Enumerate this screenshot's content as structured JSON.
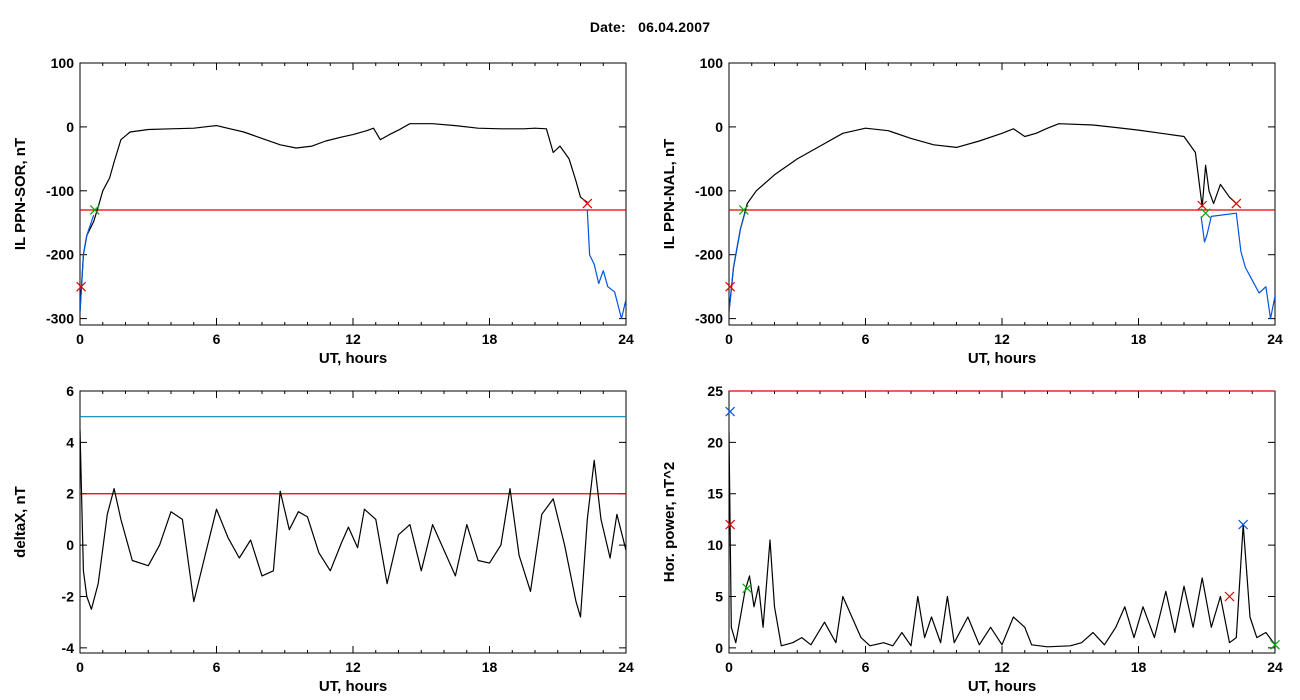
{
  "header": {
    "date_label": "Date:",
    "date_value": "06.04.2007"
  },
  "chart_data": [
    {
      "type": "line",
      "id": "il-ppn-sor",
      "xlabel": "UT, hours",
      "ylabel": "IL PPN-SOR, nT",
      "xlim": [
        0,
        24
      ],
      "ylim": [
        -310,
        100
      ],
      "xticks": [
        0,
        6,
        12,
        18,
        24
      ],
      "yticks": [
        -300,
        -200,
        -100,
        0,
        100
      ],
      "threshold_lines": [
        {
          "y": -130,
          "color": "#e00000"
        }
      ],
      "series": [
        {
          "color": "#000000",
          "points": [
            [
              0,
              -290
            ],
            [
              0.15,
              -200
            ],
            [
              0.3,
              -170
            ],
            [
              0.6,
              -148
            ],
            [
              0.8,
              -125
            ],
            [
              1.0,
              -100
            ],
            [
              1.3,
              -80
            ],
            [
              1.5,
              -55
            ],
            [
              1.8,
              -20
            ],
            [
              2.2,
              -8
            ],
            [
              3,
              -4
            ],
            [
              4,
              -3
            ],
            [
              5,
              -2
            ],
            [
              5.7,
              1
            ],
            [
              6,
              2
            ],
            [
              6.6,
              -3
            ],
            [
              7.2,
              -8
            ],
            [
              8,
              -18
            ],
            [
              8.8,
              -28
            ],
            [
              9.5,
              -33
            ],
            [
              10.2,
              -30
            ],
            [
              10.8,
              -22
            ],
            [
              11.5,
              -16
            ],
            [
              12,
              -12
            ],
            [
              12.6,
              -6
            ],
            [
              12.9,
              -2
            ],
            [
              13.2,
              -20
            ],
            [
              13.6,
              -12
            ],
            [
              14,
              -5
            ],
            [
              14.5,
              5
            ],
            [
              15.5,
              5
            ],
            [
              16.5,
              2
            ],
            [
              17.5,
              -2
            ],
            [
              18.5,
              -3
            ],
            [
              19.5,
              -3
            ],
            [
              20,
              -2
            ],
            [
              20.5,
              -3
            ],
            [
              20.8,
              -40
            ],
            [
              21.1,
              -30
            ],
            [
              21.5,
              -50
            ],
            [
              21.8,
              -85
            ],
            [
              22.0,
              -110
            ],
            [
              22.3,
              -118
            ]
          ]
        },
        {
          "color": "#0055dd",
          "points": [
            [
              0,
              -290
            ],
            [
              0.15,
              -200
            ],
            [
              0.3,
              -170
            ],
            [
              0.6,
              -138
            ]
          ]
        },
        {
          "color": "#0055dd",
          "points": [
            [
              22.3,
              -130
            ],
            [
              22.4,
              -200
            ],
            [
              22.6,
              -215
            ],
            [
              22.8,
              -245
            ],
            [
              23.0,
              -225
            ],
            [
              23.2,
              -250
            ],
            [
              23.5,
              -258
            ],
            [
              23.8,
              -300
            ],
            [
              24,
              -270
            ]
          ]
        }
      ],
      "markers": [
        {
          "x": 0.65,
          "y": -130,
          "color": "#00aa00",
          "symbol": "x"
        },
        {
          "x": 0.05,
          "y": -250,
          "color": "#e00000",
          "symbol": "x"
        },
        {
          "x": 22.3,
          "y": -120,
          "color": "#e00000",
          "symbol": "x"
        }
      ]
    },
    {
      "type": "line",
      "id": "il-ppn-nal",
      "xlabel": "UT, hours",
      "ylabel": "IL PPN-NAL, nT",
      "xlim": [
        0,
        24
      ],
      "ylim": [
        -310,
        100
      ],
      "xticks": [
        0,
        6,
        12,
        18,
        24
      ],
      "yticks": [
        -300,
        -200,
        -100,
        0,
        100
      ],
      "threshold_lines": [
        {
          "y": -130,
          "color": "#e00000"
        }
      ],
      "series": [
        {
          "color": "#000000",
          "points": [
            [
              0,
              -290
            ],
            [
              0.2,
              -220
            ],
            [
              0.5,
              -160
            ],
            [
              0.8,
              -120
            ],
            [
              1.2,
              -100
            ],
            [
              2,
              -75
            ],
            [
              3,
              -50
            ],
            [
              4,
              -30
            ],
            [
              5,
              -10
            ],
            [
              6,
              -2
            ],
            [
              7,
              -6
            ],
            [
              8,
              -18
            ],
            [
              9,
              -28
            ],
            [
              10,
              -32
            ],
            [
              11,
              -22
            ],
            [
              12,
              -10
            ],
            [
              12.5,
              -3
            ],
            [
              13,
              -15
            ],
            [
              13.5,
              -10
            ],
            [
              14,
              -2
            ],
            [
              14.5,
              5
            ],
            [
              16,
              3
            ],
            [
              17,
              -1
            ],
            [
              18,
              -5
            ],
            [
              19,
              -10
            ],
            [
              20,
              -15
            ],
            [
              20.5,
              -40
            ],
            [
              20.8,
              -125
            ],
            [
              20.95,
              -60
            ],
            [
              21.1,
              -100
            ],
            [
              21.3,
              -120
            ],
            [
              21.6,
              -90
            ],
            [
              22,
              -110
            ],
            [
              22.3,
              -120
            ]
          ]
        },
        {
          "color": "#0055dd",
          "points": [
            [
              0,
              -290
            ],
            [
              0.2,
              -220
            ],
            [
              0.5,
              -160
            ],
            [
              0.7,
              -135
            ]
          ]
        },
        {
          "color": "#0055dd",
          "points": [
            [
              20.75,
              -140
            ],
            [
              20.9,
              -180
            ],
            [
              21.0,
              -170
            ],
            [
              21.2,
              -140
            ],
            [
              22.3,
              -135
            ],
            [
              22.5,
              -195
            ],
            [
              22.7,
              -220
            ],
            [
              23.0,
              -240
            ],
            [
              23.3,
              -260
            ],
            [
              23.6,
              -250
            ],
            [
              23.8,
              -300
            ],
            [
              24,
              -265
            ]
          ]
        }
      ],
      "markers": [
        {
          "x": 0.65,
          "y": -130,
          "color": "#00aa00",
          "symbol": "x"
        },
        {
          "x": 0.05,
          "y": -250,
          "color": "#e00000",
          "symbol": "x"
        },
        {
          "x": 20.8,
          "y": -123,
          "color": "#e00000",
          "symbol": "x"
        },
        {
          "x": 20.95,
          "y": -135,
          "color": "#00aa00",
          "symbol": "x"
        },
        {
          "x": 22.3,
          "y": -120,
          "color": "#e00000",
          "symbol": "x"
        }
      ]
    },
    {
      "type": "line",
      "id": "delta-x",
      "xlabel": "UT, hours",
      "ylabel": "deltaX, nT",
      "xlim": [
        0,
        24
      ],
      "ylim": [
        -4.2,
        6
      ],
      "xticks": [
        0,
        6,
        12,
        18,
        24
      ],
      "yticks": [
        -4,
        -2,
        0,
        2,
        4,
        6
      ],
      "threshold_lines": [
        {
          "y": 5,
          "color": "#0088aa"
        },
        {
          "y": 2,
          "color": "#e00000"
        }
      ],
      "series": [
        {
          "color": "#000000",
          "points": [
            [
              0,
              4.5
            ],
            [
              0.15,
              -1
            ],
            [
              0.3,
              -2
            ],
            [
              0.5,
              -2.5
            ],
            [
              0.8,
              -1.5
            ],
            [
              1.2,
              1.2
            ],
            [
              1.5,
              2.2
            ],
            [
              1.8,
              1
            ],
            [
              2.3,
              -0.6
            ],
            [
              3,
              -0.8
            ],
            [
              3.5,
              0
            ],
            [
              4,
              1.3
            ],
            [
              4.5,
              1
            ],
            [
              5,
              -2.2
            ],
            [
              5.5,
              -0.4
            ],
            [
              6,
              1.4
            ],
            [
              6.5,
              0.3
            ],
            [
              7,
              -0.5
            ],
            [
              7.5,
              0.2
            ],
            [
              8,
              -1.2
            ],
            [
              8.5,
              -1
            ],
            [
              8.8,
              2.1
            ],
            [
              9.2,
              0.6
            ],
            [
              9.6,
              1.3
            ],
            [
              10,
              1.1
            ],
            [
              10.5,
              -0.3
            ],
            [
              11,
              -1
            ],
            [
              11.5,
              0.1
            ],
            [
              11.8,
              0.7
            ],
            [
              12.2,
              -0.1
            ],
            [
              12.5,
              1.4
            ],
            [
              13,
              1
            ],
            [
              13.5,
              -1.5
            ],
            [
              14,
              0.4
            ],
            [
              14.5,
              0.8
            ],
            [
              15,
              -1
            ],
            [
              15.5,
              0.8
            ],
            [
              16,
              -0.2
            ],
            [
              16.5,
              -1.2
            ],
            [
              17,
              0.8
            ],
            [
              17.5,
              -0.6
            ],
            [
              18,
              -0.7
            ],
            [
              18.5,
              0
            ],
            [
              18.9,
              2.2
            ],
            [
              19.3,
              -0.4
            ],
            [
              19.8,
              -1.8
            ],
            [
              20.3,
              1.2
            ],
            [
              20.8,
              1.8
            ],
            [
              21.3,
              0
            ],
            [
              21.8,
              -2.2
            ],
            [
              22,
              -2.8
            ],
            [
              22.3,
              1
            ],
            [
              22.6,
              3.3
            ],
            [
              22.9,
              1
            ],
            [
              23.3,
              -0.5
            ],
            [
              23.6,
              1.2
            ],
            [
              24,
              -0.2
            ]
          ]
        }
      ],
      "markers": []
    },
    {
      "type": "line",
      "id": "hor-power",
      "xlabel": "UT, hours",
      "ylabel": "Hor. power, nT^2",
      "xlim": [
        0,
        24
      ],
      "ylim": [
        -0.5,
        25
      ],
      "xticks": [
        0,
        6,
        12,
        18,
        24
      ],
      "yticks": [
        0,
        5,
        10,
        15,
        20,
        25
      ],
      "threshold_lines": [
        {
          "y": 25,
          "color": "#e00000"
        }
      ],
      "series": [
        {
          "color": "#000000",
          "points": [
            [
              0,
              21
            ],
            [
              0.1,
              2
            ],
            [
              0.3,
              0.5
            ],
            [
              0.5,
              3
            ],
            [
              0.7,
              5.5
            ],
            [
              0.9,
              7
            ],
            [
              1.1,
              4
            ],
            [
              1.3,
              6
            ],
            [
              1.5,
              2
            ],
            [
              1.8,
              10.5
            ],
            [
              2,
              4
            ],
            [
              2.3,
              0.2
            ],
            [
              2.8,
              0.5
            ],
            [
              3.2,
              1
            ],
            [
              3.6,
              0.3
            ],
            [
              4.2,
              2.5
            ],
            [
              4.7,
              0.5
            ],
            [
              5.0,
              5
            ],
            [
              5.4,
              3
            ],
            [
              5.8,
              1
            ],
            [
              6.2,
              0.2
            ],
            [
              6.8,
              0.5
            ],
            [
              7.2,
              0.2
            ],
            [
              7.6,
              1.5
            ],
            [
              8.0,
              0.2
            ],
            [
              8.3,
              5
            ],
            [
              8.6,
              1
            ],
            [
              8.9,
              3
            ],
            [
              9.3,
              0.5
            ],
            [
              9.6,
              5
            ],
            [
              9.9,
              0.5
            ],
            [
              10.5,
              3
            ],
            [
              11,
              0.3
            ],
            [
              11.5,
              2
            ],
            [
              12,
              0.3
            ],
            [
              12.5,
              3
            ],
            [
              13,
              2
            ],
            [
              13.3,
              0.3
            ],
            [
              14,
              0.1
            ],
            [
              15,
              0.2
            ],
            [
              15.5,
              0.5
            ],
            [
              16,
              1.5
            ],
            [
              16.5,
              0.3
            ],
            [
              17,
              2
            ],
            [
              17.4,
              4
            ],
            [
              17.8,
              1
            ],
            [
              18.2,
              4
            ],
            [
              18.7,
              1
            ],
            [
              19.2,
              5.5
            ],
            [
              19.6,
              1.5
            ],
            [
              20,
              6
            ],
            [
              20.4,
              2
            ],
            [
              20.8,
              6.8
            ],
            [
              21.2,
              2
            ],
            [
              21.6,
              5
            ],
            [
              22,
              0.5
            ],
            [
              22.3,
              1
            ],
            [
              22.6,
              12
            ],
            [
              22.9,
              3
            ],
            [
              23.2,
              1
            ],
            [
              23.6,
              1.5
            ],
            [
              24,
              0.3
            ]
          ]
        }
      ],
      "markers": [
        {
          "x": 0.05,
          "y": 23,
          "color": "#0055dd",
          "symbol": "x"
        },
        {
          "x": 0.05,
          "y": 12,
          "color": "#e00000",
          "symbol": "x"
        },
        {
          "x": 0.8,
          "y": 5.8,
          "color": "#00aa00",
          "symbol": "x"
        },
        {
          "x": 22.0,
          "y": 5,
          "color": "#e00000",
          "symbol": "x"
        },
        {
          "x": 22.6,
          "y": 12,
          "color": "#0055dd",
          "symbol": "x"
        },
        {
          "x": 24,
          "y": 0.3,
          "color": "#00aa00",
          "symbol": "x"
        }
      ]
    }
  ]
}
